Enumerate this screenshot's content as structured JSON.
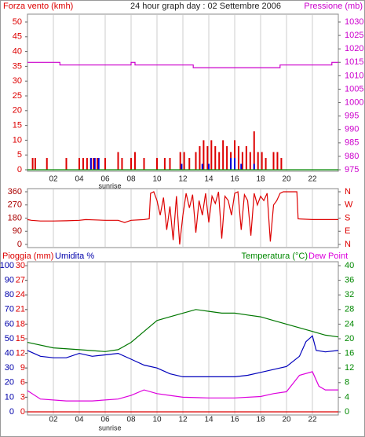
{
  "chart_data": [
    {
      "type": "bar",
      "title": "24 hour graph day : 02 Settembre 2006",
      "ylabel": "Forza vento (kmh)",
      "y2label": "Pressione (mb)",
      "annotation": "sunrise",
      "ycolor": "#dd0000",
      "y2color": "#cc00cc",
      "xlim": [
        0,
        24
      ],
      "xticks": [
        {
          "value": 2,
          "label": "02"
        },
        {
          "value": 4,
          "label": "04"
        },
        {
          "value": 6,
          "label": "06"
        },
        {
          "value": 8,
          "label": "08"
        },
        {
          "value": 10,
          "label": "10"
        },
        {
          "value": 12,
          "label": "12"
        },
        {
          "value": 14,
          "label": "14"
        },
        {
          "value": 16,
          "label": "16"
        },
        {
          "value": 18,
          "label": "18"
        },
        {
          "value": 20,
          "label": "20"
        },
        {
          "value": 22,
          "label": "22"
        }
      ],
      "ylim": [
        0,
        50
      ],
      "yticks": [
        0,
        5,
        10,
        15,
        20,
        25,
        30,
        35,
        40,
        45,
        50
      ],
      "y2lim": [
        975,
        1030
      ],
      "y2ticks": [
        975,
        980,
        985,
        990,
        995,
        1000,
        1005,
        1010,
        1015,
        1020,
        1025,
        1030
      ],
      "grid": true,
      "series": [
        {
          "type": "bar",
          "color": "#dd0000",
          "x": [
            0.4,
            0.6,
            1.5,
            3,
            4,
            4.3,
            4.6,
            4.9,
            5.1,
            5.4,
            6,
            7,
            7.3,
            8,
            8.3,
            9,
            10,
            10.6,
            11,
            11.8,
            12.1,
            12.5,
            13,
            13.3,
            13.6,
            13.9,
            14.2,
            14.5,
            14.8,
            15.1,
            15.4,
            15.7,
            16,
            16.3,
            16.6,
            16.9,
            17.2,
            17.5,
            17.8,
            18.1,
            18.4,
            19,
            19.3,
            19.6
          ],
          "values": [
            4,
            4,
            4,
            4,
            4,
            4,
            4,
            4,
            4,
            4,
            4,
            6,
            4,
            4,
            6,
            4,
            4,
            4,
            4,
            6,
            6,
            4,
            6,
            8,
            10,
            8,
            10,
            8,
            6,
            10,
            8,
            6,
            10,
            8,
            6,
            8,
            6,
            13,
            6,
            6,
            4,
            6,
            6,
            4
          ]
        },
        {
          "type": "bar",
          "color": "#0000dd",
          "x": [
            4.9,
            5.2,
            5.5,
            11.9,
            13.5,
            14,
            15.7,
            16,
            16.5,
            17.5
          ],
          "values": [
            4,
            4,
            4,
            2,
            2,
            2,
            4,
            4,
            2,
            2
          ]
        },
        {
          "type": "line",
          "axis": "y2",
          "color": "#cc00cc",
          "x": [
            0,
            2.5,
            2.5,
            8,
            8,
            8.3,
            8.3,
            12.8,
            12.8,
            19.5,
            19.5,
            23.5,
            23.5,
            24
          ],
          "values": [
            1015,
            1015,
            1014,
            1014,
            1015,
            1015,
            1014,
            1014,
            1013,
            1013,
            1014,
            1014,
            1015,
            1015
          ]
        },
        {
          "type": "line",
          "color": "#008800",
          "x": [
            0,
            24
          ],
          "values": [
            0,
            0
          ]
        }
      ]
    },
    {
      "type": "line",
      "ycolor": "#aa0000",
      "y2color": "#dd0000",
      "xlim": [
        0,
        24
      ],
      "xticks": [
        2,
        4,
        6,
        8,
        10,
        12,
        14,
        16,
        18,
        20,
        22
      ],
      "ylim": [
        0,
        360
      ],
      "yticks": [
        0,
        90,
        180,
        270,
        360
      ],
      "y2lim": [
        0,
        360
      ],
      "y2ticks": [
        {
          "value": 360,
          "label": "N"
        },
        {
          "value": 270,
          "label": "W"
        },
        {
          "value": 180,
          "label": "S"
        },
        {
          "value": 90,
          "label": "E"
        },
        {
          "value": 0,
          "label": "N"
        }
      ],
      "grid": true,
      "series": [
        {
          "type": "line",
          "color": "#dd0000",
          "x": [
            0,
            0.3,
            1,
            2,
            3,
            4,
            4.5,
            5,
            6,
            7,
            7.5,
            8,
            9,
            9.4,
            9.5,
            9.75,
            10,
            10.25,
            10.5,
            10.75,
            11,
            11.25,
            11.5,
            11.75,
            12,
            12.25,
            12.5,
            12.75,
            13,
            13.25,
            13.5,
            13.75,
            14,
            14.25,
            14.5,
            14.75,
            15,
            15.25,
            15.5,
            15.75,
            16,
            16.25,
            16.5,
            16.75,
            17,
            17.25,
            17.5,
            17.75,
            18,
            18.25,
            18.5,
            18.75,
            19,
            19.25,
            19.5,
            19.75,
            20,
            20.5,
            20.8,
            20.9,
            22,
            24
          ],
          "values": [
            170,
            165,
            160,
            160,
            162,
            165,
            170,
            168,
            165,
            165,
            150,
            165,
            170,
            175,
            350,
            360,
            300,
            200,
            320,
            100,
            260,
            30,
            330,
            0,
            200,
            350,
            250,
            340,
            80,
            300,
            200,
            350,
            150,
            330,
            280,
            360,
            40,
            330,
            300,
            200,
            350,
            360,
            100,
            340,
            300,
            60,
            350,
            270,
            330,
            300,
            350,
            20,
            270,
            300,
            350,
            360,
            360,
            360,
            360,
            175,
            170,
            170
          ]
        }
      ]
    },
    {
      "type": "line",
      "ylabel": "Umidita %",
      "y2label": "Temperatura (°C)",
      "y3label": "Pioggia (mm)",
      "annotation": "sunrise",
      "ycolor": "#0000aa",
      "y2color": "#008800",
      "y3color": "#dd0000",
      "xlim": [
        0,
        24
      ],
      "xticks": [
        {
          "value": 2,
          "label": "02"
        },
        {
          "value": 4,
          "label": "04"
        },
        {
          "value": 6,
          "label": "06"
        },
        {
          "value": 8,
          "label": "08"
        },
        {
          "value": 10,
          "label": "10"
        },
        {
          "value": 12,
          "label": "12"
        },
        {
          "value": 14,
          "label": "14"
        },
        {
          "value": 16,
          "label": "16"
        },
        {
          "value": 18,
          "label": "18"
        },
        {
          "value": 20,
          "label": "20"
        },
        {
          "value": 22,
          "label": "22"
        }
      ],
      "ylim": [
        0,
        100
      ],
      "yticks": [
        0,
        10,
        20,
        30,
        40,
        50,
        60,
        70,
        80,
        90,
        100
      ],
      "y2lim": [
        0,
        40
      ],
      "y2ticks": [
        0,
        4,
        8,
        12,
        16,
        20,
        24,
        28,
        32,
        36,
        40
      ],
      "y3lim": [
        0,
        30
      ],
      "y3ticks": [
        0,
        3,
        6,
        9,
        12,
        15,
        18,
        21,
        24,
        27,
        30
      ],
      "grid": true,
      "series": [
        {
          "type": "line",
          "color": "#0000bb",
          "x": [
            0,
            1,
            2,
            3,
            4,
            5,
            6,
            7,
            8,
            9,
            10,
            11,
            12,
            13,
            14,
            15,
            16,
            17,
            18,
            19,
            20,
            21,
            21.5,
            22,
            22.3,
            23,
            24
          ],
          "values": [
            42,
            38,
            37,
            37,
            40,
            38,
            39,
            40,
            36,
            32,
            30,
            26,
            24,
            24,
            24,
            24,
            24,
            25,
            27,
            29,
            31,
            38,
            48,
            52,
            42,
            41,
            42
          ]
        },
        {
          "type": "line",
          "axis": "y2",
          "color": "#007700",
          "x": [
            0,
            2,
            4,
            6,
            7,
            8,
            9,
            10,
            11,
            12,
            13,
            14,
            15,
            16,
            17,
            18,
            19,
            20,
            21,
            22,
            23,
            24
          ],
          "values": [
            19,
            17.5,
            17,
            16.5,
            17,
            19,
            22,
            25,
            26,
            27,
            28,
            27.5,
            27,
            27,
            26.5,
            26,
            25,
            24,
            23,
            22,
            21,
            20.5
          ]
        },
        {
          "type": "line",
          "axis": "y2",
          "name": "Dew Point",
          "color": "#dd00dd",
          "x": [
            0,
            1,
            3,
            5,
            7,
            8,
            9,
            10,
            11,
            12,
            14,
            16,
            18,
            19,
            20,
            21,
            22,
            22.5,
            23,
            24
          ],
          "values": [
            5.8,
            3.5,
            3,
            3,
            3.5,
            4.5,
            6,
            5,
            4.5,
            4,
            3.8,
            3.8,
            4.2,
            5,
            5.5,
            10,
            11,
            7,
            6,
            6
          ]
        },
        {
          "type": "line",
          "axis": "y3",
          "color": "#dd0000",
          "x": [
            0,
            24
          ],
          "values": [
            0,
            0
          ]
        }
      ]
    }
  ]
}
